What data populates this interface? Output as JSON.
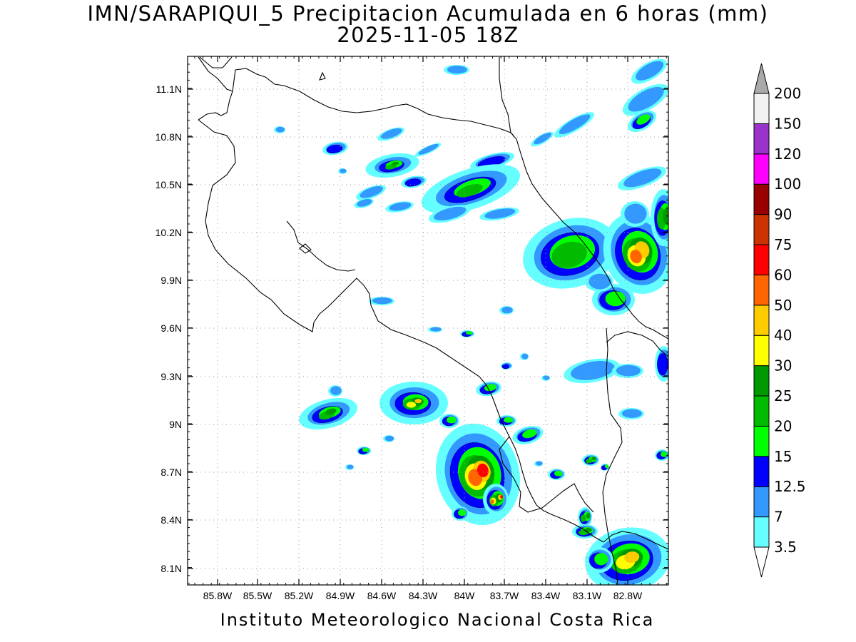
{
  "title": {
    "line1": "IMN/SARAPIQUI_5 Precipitacion Acumulada en 6 horas (mm)",
    "line2": "2025-11-05 18Z"
  },
  "footer": "Instituto Meteorologico Nacional Costa Rica",
  "axes": {
    "lat_ticks": [
      "11.1N",
      "10.8N",
      "10.5N",
      "10.2N",
      "9.9N",
      "9.6N",
      "9.3N",
      "9N",
      "8.7N",
      "8.4N",
      "8.1N"
    ],
    "lon_ticks": [
      "85.8W",
      "85.5W",
      "85.2W",
      "84.9W",
      "84.6W",
      "84.3W",
      "84W",
      "83.7W",
      "83.4W",
      "83.1W",
      "82.8W"
    ]
  },
  "colorbar": {
    "levels": [
      "3.5",
      "7",
      "12.5",
      "15",
      "20",
      "25",
      "30",
      "40",
      "50",
      "60",
      "75",
      "90",
      "100",
      "120",
      "150",
      "200"
    ],
    "colors": [
      "#66ffff",
      "#3399ff",
      "#0000ff",
      "#00ff00",
      "#00bb00",
      "#009900",
      "#ffff00",
      "#ffcc00",
      "#ff6600",
      "#ff0000",
      "#cc3300",
      "#990000",
      "#ff00ff",
      "#9933cc",
      "#f2f2f2",
      "#aaaaaa"
    ],
    "below_color": "#ffffff"
  }
}
